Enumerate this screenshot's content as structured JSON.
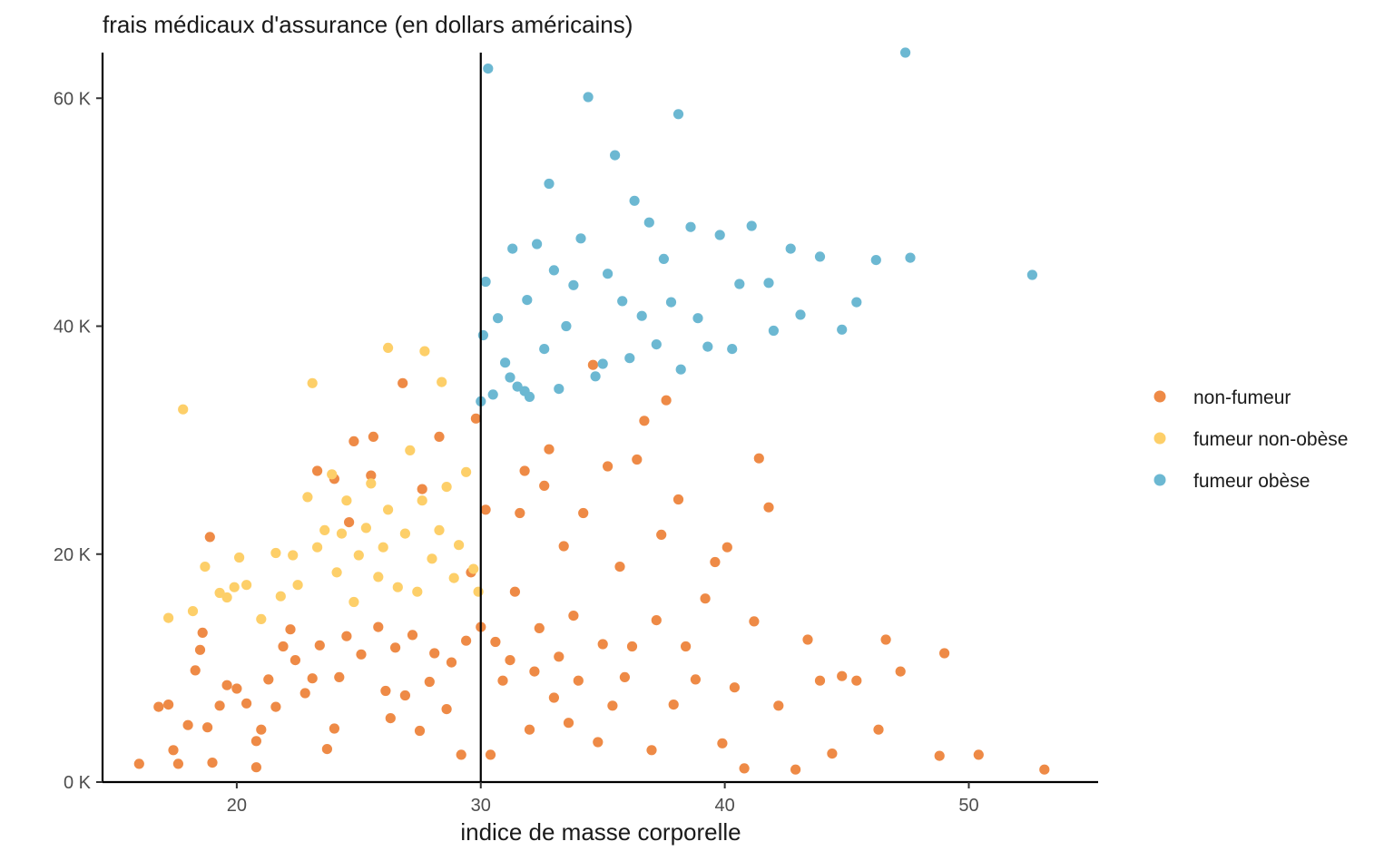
{
  "chart_data": {
    "type": "scatter",
    "title": "frais médicaux d'assurance (en dollars américains)",
    "xlabel": "indice de masse corporelle",
    "ylabel": "",
    "xlim": [
      14.5,
      55.3
    ],
    "ylim": [
      0,
      64000
    ],
    "x_ticks": [
      20,
      30,
      40,
      50
    ],
    "x_tick_labels": [
      "20",
      "30",
      "40",
      "50"
    ],
    "y_ticks": [
      0,
      20000,
      40000,
      60000
    ],
    "y_tick_labels": [
      "0 K",
      "20 K",
      "40 K",
      "60 K"
    ],
    "reference_line": {
      "orientation": "vertical",
      "x": 30
    },
    "grid": false,
    "legend_position": "right",
    "series": [
      {
        "name": "non-fumeur",
        "color": "#EE8A46",
        "points": [
          [
            16.0,
            1600
          ],
          [
            16.8,
            6600
          ],
          [
            17.2,
            6800
          ],
          [
            17.4,
            2800
          ],
          [
            17.6,
            1600
          ],
          [
            18.0,
            5000
          ],
          [
            18.3,
            9800
          ],
          [
            18.5,
            11600
          ],
          [
            18.6,
            13100
          ],
          [
            18.8,
            4800
          ],
          [
            19.0,
            1700
          ],
          [
            18.9,
            21500
          ],
          [
            19.3,
            6700
          ],
          [
            19.6,
            8500
          ],
          [
            20.0,
            8200
          ],
          [
            20.4,
            6900
          ],
          [
            20.8,
            1300
          ],
          [
            20.8,
            3600
          ],
          [
            21.0,
            4600
          ],
          [
            21.3,
            9000
          ],
          [
            21.6,
            6600
          ],
          [
            21.9,
            11900
          ],
          [
            22.2,
            13400
          ],
          [
            22.4,
            10700
          ],
          [
            22.8,
            7800
          ],
          [
            23.1,
            9100
          ],
          [
            23.4,
            12000
          ],
          [
            23.3,
            27300
          ],
          [
            23.7,
            2900
          ],
          [
            24.0,
            4700
          ],
          [
            24.0,
            26600
          ],
          [
            24.2,
            9200
          ],
          [
            24.5,
            12800
          ],
          [
            24.6,
            22800
          ],
          [
            24.8,
            29900
          ],
          [
            25.1,
            11200
          ],
          [
            25.5,
            26900
          ],
          [
            25.6,
            30300
          ],
          [
            25.8,
            13600
          ],
          [
            26.1,
            8000
          ],
          [
            26.3,
            5600
          ],
          [
            26.5,
            11800
          ],
          [
            26.8,
            35000
          ],
          [
            26.9,
            7600
          ],
          [
            27.2,
            12900
          ],
          [
            27.5,
            4500
          ],
          [
            27.6,
            25700
          ],
          [
            27.9,
            8800
          ],
          [
            28.1,
            11300
          ],
          [
            28.3,
            30300
          ],
          [
            28.6,
            6400
          ],
          [
            28.8,
            10500
          ],
          [
            29.2,
            2400
          ],
          [
            29.4,
            12400
          ],
          [
            29.6,
            18400
          ],
          [
            29.8,
            31900
          ],
          [
            30.0,
            13600
          ],
          [
            30.2,
            23900
          ],
          [
            30.4,
            2400
          ],
          [
            30.6,
            12300
          ],
          [
            30.9,
            8900
          ],
          [
            31.2,
            10700
          ],
          [
            31.4,
            16700
          ],
          [
            31.6,
            23600
          ],
          [
            31.8,
            27300
          ],
          [
            32.0,
            4600
          ],
          [
            32.2,
            9700
          ],
          [
            32.4,
            13500
          ],
          [
            32.6,
            26000
          ],
          [
            32.8,
            29200
          ],
          [
            33.0,
            7400
          ],
          [
            33.2,
            11000
          ],
          [
            33.4,
            20700
          ],
          [
            33.6,
            5200
          ],
          [
            33.8,
            14600
          ],
          [
            34.0,
            8900
          ],
          [
            34.2,
            23600
          ],
          [
            34.6,
            36600
          ],
          [
            34.8,
            3500
          ],
          [
            35.0,
            12100
          ],
          [
            35.2,
            27700
          ],
          [
            35.4,
            6700
          ],
          [
            35.7,
            18900
          ],
          [
            35.9,
            9200
          ],
          [
            36.2,
            11900
          ],
          [
            36.4,
            28300
          ],
          [
            36.7,
            31700
          ],
          [
            37.0,
            2800
          ],
          [
            37.2,
            14200
          ],
          [
            37.4,
            21700
          ],
          [
            37.6,
            33500
          ],
          [
            37.9,
            6800
          ],
          [
            38.1,
            24800
          ],
          [
            38.4,
            11900
          ],
          [
            38.8,
            9000
          ],
          [
            39.2,
            16100
          ],
          [
            39.6,
            19300
          ],
          [
            39.9,
            3400
          ],
          [
            40.1,
            20600
          ],
          [
            40.4,
            8300
          ],
          [
            40.8,
            1200
          ],
          [
            41.2,
            14100
          ],
          [
            41.4,
            28400
          ],
          [
            41.8,
            24100
          ],
          [
            42.2,
            6700
          ],
          [
            42.9,
            1100
          ],
          [
            43.4,
            12500
          ],
          [
            43.9,
            8900
          ],
          [
            44.4,
            2500
          ],
          [
            44.8,
            9300
          ],
          [
            45.4,
            8900
          ],
          [
            46.3,
            4600
          ],
          [
            46.6,
            12500
          ],
          [
            47.2,
            9700
          ],
          [
            48.8,
            2300
          ],
          [
            49.0,
            11300
          ],
          [
            50.4,
            2400
          ],
          [
            53.1,
            1100
          ]
        ]
      },
      {
        "name": "fumeur non-obèse",
        "color": "#FDCF69",
        "points": [
          [
            17.2,
            14400
          ],
          [
            17.8,
            32700
          ],
          [
            18.2,
            15000
          ],
          [
            18.7,
            18900
          ],
          [
            19.3,
            16600
          ],
          [
            19.6,
            16200
          ],
          [
            19.9,
            17100
          ],
          [
            20.1,
            19700
          ],
          [
            20.4,
            17300
          ],
          [
            21.0,
            14300
          ],
          [
            21.6,
            20100
          ],
          [
            21.8,
            16300
          ],
          [
            22.3,
            19900
          ],
          [
            22.5,
            17300
          ],
          [
            22.9,
            25000
          ],
          [
            23.1,
            35000
          ],
          [
            23.3,
            20600
          ],
          [
            23.6,
            22100
          ],
          [
            23.9,
            27000
          ],
          [
            24.1,
            18400
          ],
          [
            24.3,
            21800
          ],
          [
            24.5,
            24700
          ],
          [
            24.8,
            15800
          ],
          [
            25.0,
            19900
          ],
          [
            25.3,
            22300
          ],
          [
            25.5,
            26200
          ],
          [
            25.8,
            18000
          ],
          [
            26.0,
            20600
          ],
          [
            26.2,
            23900
          ],
          [
            26.2,
            38100
          ],
          [
            26.6,
            17100
          ],
          [
            26.9,
            21800
          ],
          [
            27.1,
            29100
          ],
          [
            27.4,
            16700
          ],
          [
            27.6,
            24700
          ],
          [
            27.7,
            37800
          ],
          [
            28.0,
            19600
          ],
          [
            28.3,
            22100
          ],
          [
            28.4,
            35100
          ],
          [
            28.6,
            25900
          ],
          [
            28.9,
            17900
          ],
          [
            29.1,
            20800
          ],
          [
            29.4,
            27200
          ],
          [
            29.7,
            18700
          ],
          [
            29.9,
            16700
          ]
        ]
      },
      {
        "name": "fumeur obèse",
        "color": "#6CB8D2",
        "points": [
          [
            30.0,
            33400
          ],
          [
            30.1,
            39200
          ],
          [
            30.2,
            43900
          ],
          [
            30.3,
            62600
          ],
          [
            30.5,
            34000
          ],
          [
            30.7,
            40700
          ],
          [
            31.0,
            36800
          ],
          [
            31.2,
            35500
          ],
          [
            31.3,
            46800
          ],
          [
            31.5,
            34700
          ],
          [
            31.8,
            34300
          ],
          [
            31.9,
            42300
          ],
          [
            32.0,
            33800
          ],
          [
            32.3,
            47200
          ],
          [
            32.6,
            38000
          ],
          [
            32.8,
            52500
          ],
          [
            33.0,
            44900
          ],
          [
            33.2,
            34500
          ],
          [
            33.5,
            40000
          ],
          [
            33.8,
            43600
          ],
          [
            34.1,
            47700
          ],
          [
            34.4,
            60100
          ],
          [
            34.7,
            35600
          ],
          [
            35.0,
            36700
          ],
          [
            35.2,
            44600
          ],
          [
            35.5,
            55000
          ],
          [
            35.8,
            42200
          ],
          [
            36.1,
            37200
          ],
          [
            36.3,
            51000
          ],
          [
            36.6,
            40900
          ],
          [
            36.9,
            49100
          ],
          [
            37.2,
            38400
          ],
          [
            37.5,
            45900
          ],
          [
            37.8,
            42100
          ],
          [
            38.1,
            58600
          ],
          [
            38.2,
            36200
          ],
          [
            38.6,
            48700
          ],
          [
            38.9,
            40700
          ],
          [
            39.3,
            38200
          ],
          [
            39.8,
            48000
          ],
          [
            40.3,
            38000
          ],
          [
            40.6,
            43700
          ],
          [
            41.1,
            48800
          ],
          [
            41.8,
            43800
          ],
          [
            42.0,
            39600
          ],
          [
            42.7,
            46800
          ],
          [
            43.1,
            41000
          ],
          [
            43.9,
            46100
          ],
          [
            44.8,
            39700
          ],
          [
            45.4,
            42100
          ],
          [
            46.2,
            45800
          ],
          [
            47.4,
            64000
          ],
          [
            47.6,
            46000
          ],
          [
            52.6,
            44500
          ]
        ]
      }
    ]
  }
}
